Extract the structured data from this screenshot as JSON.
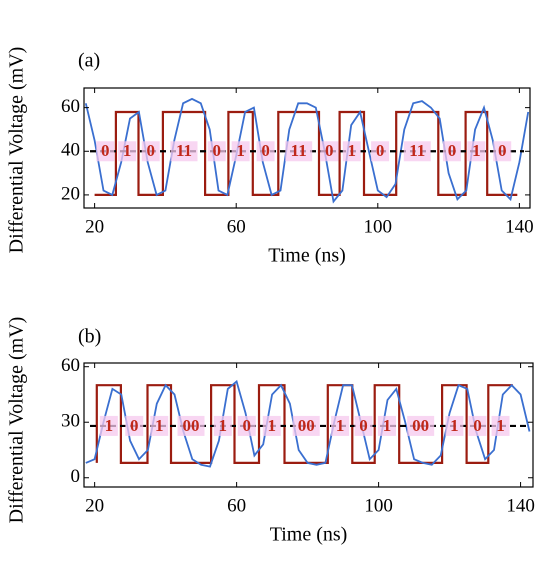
{
  "chart_data": [
    {
      "type": "line",
      "title": "(a)",
      "x_label": "Time (ns)",
      "y_label": "Differential Voltage (mV)",
      "xlim": [
        17,
        143
      ],
      "ylim": [
        14,
        69
      ],
      "xticks": [
        20,
        60,
        100,
        140
      ],
      "yticks": [
        20,
        40,
        60
      ],
      "threshold": 40,
      "threshold_color": "#000000",
      "series": [
        {
          "color": "#9b1c10",
          "x": [
            20,
            26,
            26,
            32.4,
            32.4,
            39.3,
            39.3,
            51.2,
            51.2,
            57.8,
            57.8,
            64.7,
            64.7,
            71.9,
            71.9,
            83.4,
            83.4,
            89.2,
            89.2,
            96.1,
            96.1,
            105.2,
            105.2,
            117.1,
            117.1,
            124.8,
            124.8,
            130.9,
            130.9,
            139.4
          ],
          "values": [
            20,
            20,
            58,
            58,
            20,
            20,
            58,
            58,
            20,
            20,
            58,
            58,
            20,
            20,
            58,
            58,
            20,
            20,
            58,
            58,
            20,
            20,
            58,
            58,
            20,
            20,
            58,
            58,
            20,
            20
          ]
        },
        {
          "color": "#3a6fd0",
          "x": [
            17.5,
            20,
            22.5,
            25,
            27.5,
            30,
            32.5,
            35,
            37.5,
            40,
            42.5,
            45,
            47.5,
            50,
            52.5,
            55,
            57.5,
            60,
            62.5,
            65,
            67.5,
            70,
            72.5,
            75,
            77.5,
            80,
            82.5,
            85,
            87.5,
            90,
            92.5,
            95,
            97.5,
            100,
            102.5,
            105,
            107.5,
            110,
            112.5,
            115,
            117.5,
            120,
            122.5,
            125,
            127.5,
            130,
            132.5,
            135,
            137.5,
            140,
            142.5
          ],
          "values": [
            62,
            45,
            22,
            20,
            35,
            55,
            58,
            35,
            20,
            22,
            45,
            62,
            64,
            62,
            50,
            22,
            20,
            38,
            58,
            60,
            35,
            20,
            22,
            50,
            62,
            62,
            60,
            40,
            17,
            22,
            52,
            58,
            40,
            22,
            19,
            25,
            50,
            62,
            63,
            60,
            55,
            30,
            18,
            22,
            50,
            60,
            45,
            22,
            18,
            35,
            58
          ]
        }
      ],
      "annotations": [
        {
          "text": "0",
          "x": 23
        },
        {
          "text": "1",
          "x": 29.2
        },
        {
          "text": "0",
          "x": 35.85
        },
        {
          "text": "11",
          "x": 45.25
        },
        {
          "text": "0",
          "x": 54.5
        },
        {
          "text": "1",
          "x": 61.25
        },
        {
          "text": "0",
          "x": 68.3
        },
        {
          "text": "11",
          "x": 77.65
        },
        {
          "text": "0",
          "x": 86.3
        },
        {
          "text": "1",
          "x": 92.65
        },
        {
          "text": "0",
          "x": 100.65
        },
        {
          "text": "11",
          "x": 111.15
        },
        {
          "text": "0",
          "x": 120.95
        },
        {
          "text": "1",
          "x": 127.85
        },
        {
          "text": "0",
          "x": 135.15
        }
      ]
    },
    {
      "type": "line",
      "title": "(b)",
      "x_label": "Time (ns)",
      "y_label": "Differential Voltage (mV)",
      "xlim": [
        17,
        143.5
      ],
      "ylim": [
        -5,
        62
      ],
      "xticks": [
        20,
        60,
        100,
        140
      ],
      "yticks": [
        0,
        30,
        60
      ],
      "threshold": 28,
      "threshold_color": "#000000",
      "series": [
        {
          "color": "#9b1c10",
          "x": [
            20.6,
            20.6,
            27.4,
            27.4,
            34.9,
            34.9,
            41.5,
            41.5,
            52.8,
            52.8,
            59.4,
            59.4,
            66.3,
            66.3,
            73.5,
            73.5,
            85.7,
            85.7,
            92.6,
            92.6,
            98.9,
            98.9,
            105.8,
            105.8,
            117.9,
            117.9,
            124.8,
            124.8,
            130.9,
            130.9,
            137.8
          ],
          "values": [
            8,
            50,
            50,
            8,
            8,
            50,
            50,
            8,
            8,
            50,
            50,
            8,
            8,
            50,
            50,
            8,
            8,
            50,
            50,
            8,
            8,
            50,
            50,
            8,
            8,
            50,
            50,
            8,
            8,
            50,
            50
          ]
        },
        {
          "color": "#3a6fd0",
          "x": [
            17.5,
            20,
            22.5,
            25,
            27.5,
            30,
            32.5,
            35,
            37.5,
            40,
            42.5,
            45,
            47.5,
            50,
            52.5,
            55,
            57.5,
            60,
            62.5,
            65,
            67.5,
            70,
            72.5,
            75,
            77.5,
            80,
            82.5,
            85,
            87.5,
            90,
            92.5,
            95,
            97.5,
            100,
            102.5,
            105,
            107.5,
            110,
            112.5,
            115,
            117.5,
            120,
            122.5,
            125,
            127.5,
            130,
            132.5,
            135,
            137.5,
            140,
            142.5
          ],
          "values": [
            8,
            10,
            30,
            48,
            45,
            20,
            10,
            15,
            40,
            50,
            45,
            25,
            10,
            7,
            6,
            20,
            48,
            52,
            35,
            12,
            18,
            45,
            50,
            40,
            15,
            8,
            7,
            8,
            30,
            50,
            50,
            30,
            10,
            15,
            42,
            48,
            30,
            10,
            8,
            7,
            12,
            35,
            50,
            48,
            25,
            10,
            15,
            45,
            50,
            45,
            25
          ]
        }
      ],
      "annotations": [
        {
          "text": "1",
          "x": 24
        },
        {
          "text": "0",
          "x": 31.15
        },
        {
          "text": "1",
          "x": 38.2
        },
        {
          "text": "00",
          "x": 47.15
        },
        {
          "text": "1",
          "x": 56.1
        },
        {
          "text": "0",
          "x": 62.85
        },
        {
          "text": "1",
          "x": 69.9
        },
        {
          "text": "00",
          "x": 79.6
        },
        {
          "text": "1",
          "x": 89.15
        },
        {
          "text": "0",
          "x": 95.75
        },
        {
          "text": "1",
          "x": 102.35
        },
        {
          "text": "00",
          "x": 111.85
        },
        {
          "text": "1",
          "x": 121.35
        },
        {
          "text": "0",
          "x": 127.85
        },
        {
          "text": "1",
          "x": 134.35
        }
      ]
    }
  ]
}
